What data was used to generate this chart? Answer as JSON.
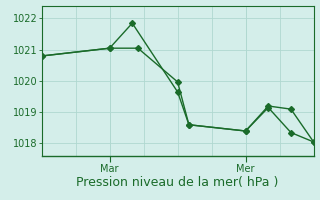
{
  "xlabel": "Pression niveau de la mer( hPa )",
  "ylim": [
    1017.6,
    1022.4
  ],
  "xlim": [
    0,
    24
  ],
  "yticks": [
    1018,
    1019,
    1020,
    1021,
    1022
  ],
  "xtick_positions": [
    6,
    18
  ],
  "xtick_labels": [
    "Mar",
    "Mer"
  ],
  "bg_color": "#d4eeea",
  "line_color": "#1a6b2a",
  "grid_color": "#b0d8d0",
  "series1_x": [
    0,
    6,
    8,
    12,
    13,
    18,
    20,
    22,
    24
  ],
  "series1_y": [
    1020.8,
    1021.05,
    1021.85,
    1019.65,
    1018.6,
    1018.4,
    1019.2,
    1019.1,
    1018.05
  ],
  "series2_x": [
    0,
    6,
    8.5,
    12,
    13,
    18,
    20,
    22,
    24
  ],
  "series2_y": [
    1020.8,
    1021.05,
    1021.05,
    1019.97,
    1018.6,
    1018.4,
    1019.15,
    1018.35,
    1018.05
  ],
  "xlabel_fontsize": 9,
  "tick_fontsize": 7,
  "marker_size": 3,
  "line_width": 1.0
}
